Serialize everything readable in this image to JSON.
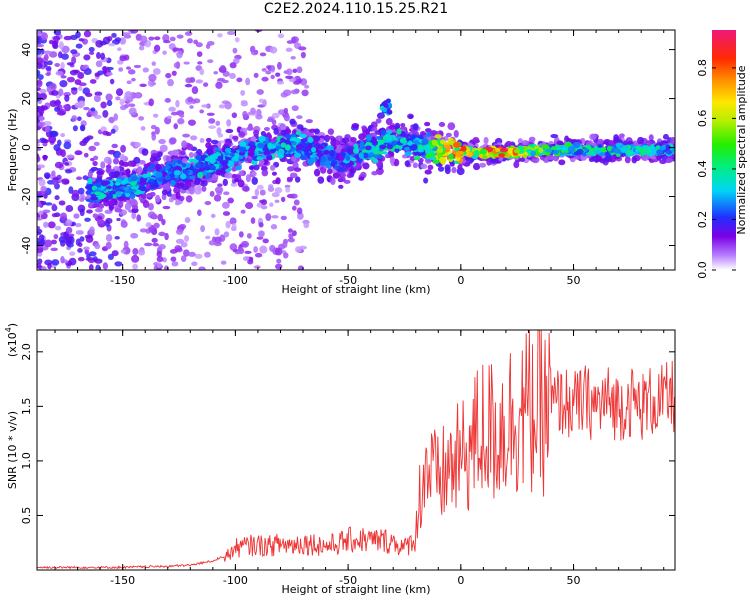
{
  "title": "C2E2.2024.110.15.25.R21",
  "chart_data": [
    {
      "type": "heatmap",
      "xlabel": "Height of straight line (km)",
      "ylabel": "Frequency (Hz)",
      "xlim": [
        -188,
        95
      ],
      "ylim": [
        -50,
        48
      ],
      "xticks": [
        "-150",
        "-100",
        "-50",
        "0",
        "50"
      ],
      "xtick_values": [
        -150,
        -100,
        -50,
        0,
        50
      ],
      "yticks": [
        "-40",
        "-20",
        "0",
        "20",
        "40"
      ],
      "ytick_values": [
        -40,
        -20,
        0,
        20,
        40
      ],
      "colorbar": {
        "label": "Normalized spectral amplitude",
        "range": [
          0,
          0.95
        ],
        "ticks": [
          "0.0",
          "0.2",
          "0.4",
          "0.6",
          "0.8"
        ],
        "tick_values": [
          0.0,
          0.2,
          0.4,
          0.6,
          0.8
        ]
      },
      "ridge": {
        "x": [
          -160,
          -145,
          -135,
          -125,
          -115,
          -105,
          -95,
          -85,
          -75,
          -65,
          -55,
          -45,
          -35,
          -25,
          -15,
          -5,
          5,
          20,
          40,
          60,
          80,
          95
        ],
        "frequency": [
          -17,
          -16,
          -12,
          -10,
          -8,
          -5,
          -2,
          0,
          1,
          -1,
          -5,
          -2,
          1,
          2,
          0,
          -2,
          -2,
          -2,
          -1,
          -1,
          -1,
          -1
        ],
        "amplitude": [
          0.35,
          0.35,
          0.3,
          0.3,
          0.35,
          0.3,
          0.3,
          0.35,
          0.35,
          0.3,
          0.25,
          0.35,
          0.4,
          0.35,
          0.45,
          0.8,
          0.75,
          0.85,
          0.45,
          0.45,
          0.4,
          0.35
        ]
      }
    },
    {
      "type": "line",
      "xlabel": "Height of straight line (km)",
      "ylabel": "SNR (10 * v/v)",
      "y_multiplier": "(x10",
      "y_multiplier_exp": "4",
      "y_multiplier_close": ")",
      "xlim": [
        -188,
        95
      ],
      "ylim": [
        0,
        2.2
      ],
      "xticks": [
        "-150",
        "-100",
        "-50",
        "0",
        "50"
      ],
      "xtick_values": [
        -150,
        -100,
        -50,
        0,
        50
      ],
      "yticks": [
        "0.5",
        "1.0",
        "1.5",
        "2.0"
      ],
      "ytick_values": [
        0.5,
        1.0,
        1.5,
        2.0
      ],
      "series": [
        {
          "color": "#ee3333",
          "x": [
            -188,
            -170,
            -150,
            -130,
            -120,
            -110,
            -103,
            -100,
            -95,
            -90,
            -85,
            -80,
            -75,
            -70,
            -65,
            -60,
            -55,
            -50,
            -45,
            -40,
            -35,
            -30,
            -25,
            -20,
            -18,
            -15,
            -10,
            -5,
            0,
            5,
            10,
            15,
            20,
            25,
            30,
            35,
            40,
            45,
            50,
            55,
            60,
            65,
            70,
            75,
            80,
            85,
            90,
            95
          ],
          "y": [
            0.02,
            0.02,
            0.02,
            0.03,
            0.04,
            0.08,
            0.14,
            0.2,
            0.22,
            0.23,
            0.22,
            0.24,
            0.23,
            0.25,
            0.24,
            0.22,
            0.24,
            0.27,
            0.28,
            0.27,
            0.27,
            0.26,
            0.2,
            0.3,
            0.75,
            0.95,
            0.8,
            0.95,
            1.0,
            1.15,
            1.3,
            1.25,
            1.35,
            1.45,
            1.45,
            1.45,
            1.5,
            1.55,
            1.5,
            1.55,
            1.5,
            1.55,
            1.5,
            1.55,
            1.5,
            1.55,
            1.55,
            1.6
          ]
        }
      ]
    }
  ]
}
